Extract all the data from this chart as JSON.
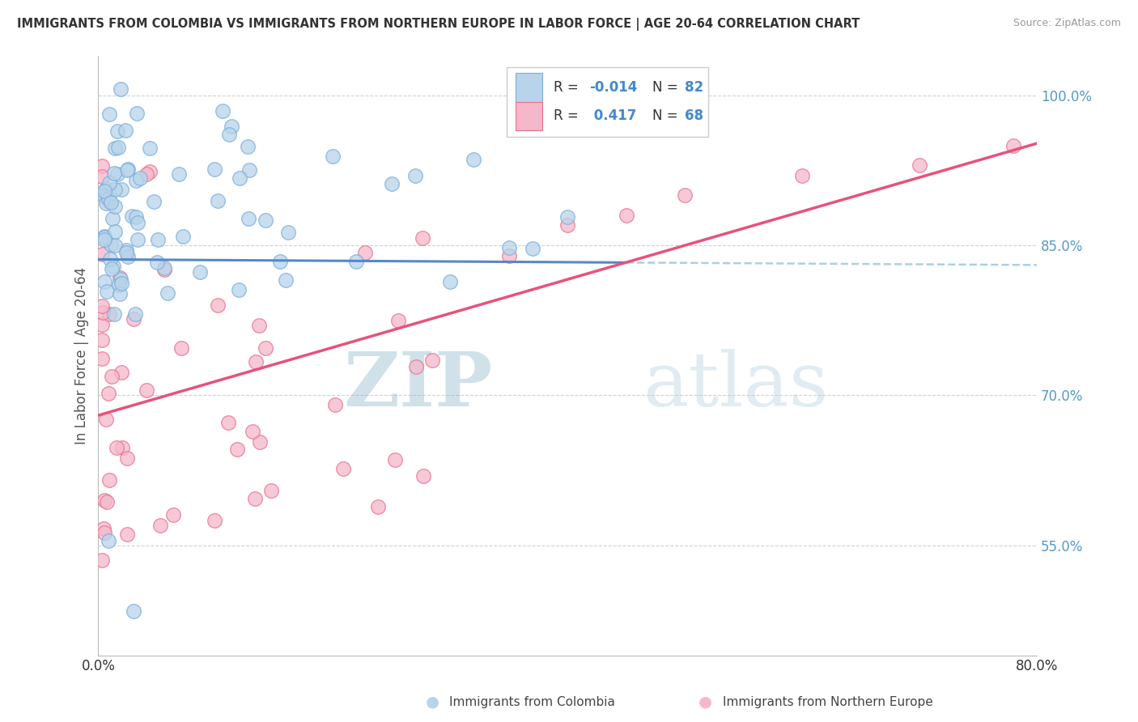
{
  "title": "IMMIGRANTS FROM COLOMBIA VS IMMIGRANTS FROM NORTHERN EUROPE IN LABOR FORCE | AGE 20-64 CORRELATION CHART",
  "source": "Source: ZipAtlas.com",
  "xlabel_bottom_left": "0.0%",
  "xlabel_bottom_right": "80.0%",
  "ylabel": "In Labor Force | Age 20-64",
  "ytick_values": [
    0.55,
    0.7,
    0.85,
    1.0
  ],
  "xlim": [
    0.0,
    0.8
  ],
  "ylim": [
    0.44,
    1.04
  ],
  "color_colombia_fill": "#b8d4ea",
  "color_colombia_edge": "#7aaedc",
  "color_northern_europe_fill": "#f5b8cb",
  "color_northern_europe_edge": "#e8728a",
  "color_line_colombia_solid": "#5588cc",
  "color_line_colombia_dashed": "#88bbdd",
  "color_line_northern_europe": "#e8527a",
  "watermark_zip": "ZIP",
  "watermark_atlas": "atlas",
  "grid_color": "#cccccc",
  "background_color": "#ffffff",
  "legend_box_color": "#ffffff",
  "legend_border_color": "#dddddd",
  "r_colombia": "-0.014",
  "n_colombia": "82",
  "r_northern_europe": "0.417",
  "n_northern_europe": "68"
}
